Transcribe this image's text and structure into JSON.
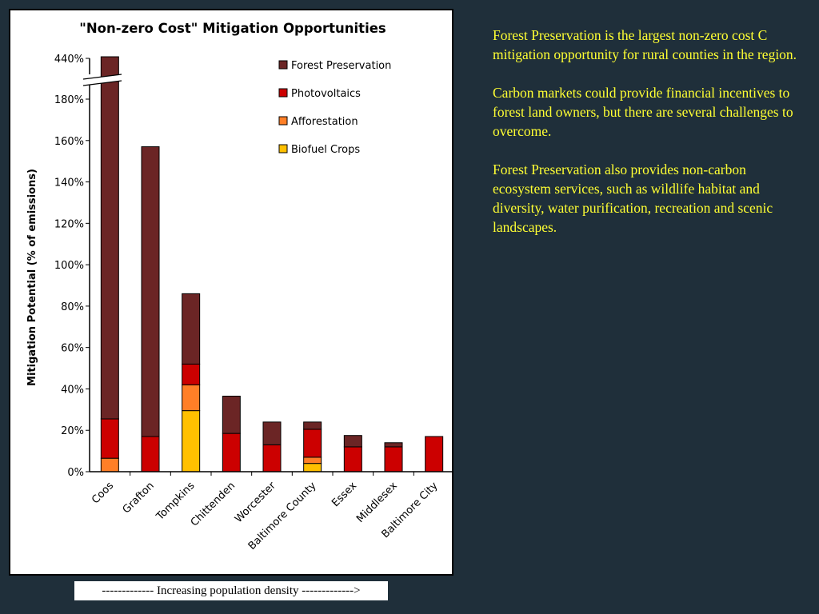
{
  "chart_data": {
    "type": "bar",
    "stacked": true,
    "title": "\"Non-zero Cost\" Mitigation Opportunities",
    "ylabel": "Mitigation Potential (% of emissions)",
    "xlabel": "",
    "ylim": [
      0,
      180
    ],
    "axis_break": {
      "from": 180,
      "to": 440,
      "top_label": "440%"
    },
    "yticks": [
      0,
      20,
      40,
      60,
      80,
      100,
      120,
      140,
      160,
      180
    ],
    "ytick_labels": [
      "0%",
      "20%",
      "40%",
      "60%",
      "80%",
      "100%",
      "120%",
      "140%",
      "160%",
      "180%"
    ],
    "legend_position": "top-right",
    "categories": [
      "Coos",
      "Grafton",
      "Tompkins",
      "Chittenden",
      "Worcester",
      "Baltimore County",
      "Essex",
      "Middlesex",
      "Baltimore City"
    ],
    "series": [
      {
        "name": "Biofuel Crops",
        "color": "#ffc000",
        "values": [
          0,
          0,
          29.5,
          0,
          0,
          4,
          0,
          0,
          0
        ]
      },
      {
        "name": "Afforestation",
        "color": "#ff7f27",
        "values": [
          6.5,
          0,
          12.5,
          0,
          0,
          3,
          0,
          0,
          0
        ]
      },
      {
        "name": "Photovoltaics",
        "color": "#cc0000",
        "values": [
          19,
          17,
          10,
          18.5,
          13,
          13.5,
          12,
          12,
          17
        ]
      },
      {
        "name": "Forest Preservation",
        "color": "#6b2525",
        "values": [
          414.5,
          140,
          34,
          18,
          11,
          3.5,
          5.5,
          2,
          0
        ]
      }
    ],
    "legend_order": [
      "Forest Preservation",
      "Photovoltaics",
      "Afforestation",
      "Biofuel Crops"
    ]
  },
  "caption": "------------- Increasing population density ------------->",
  "notes": [
    "Forest Preservation is the largest non-zero cost C mitigation opportunity for rural counties in the region.",
    "Carbon markets could provide financial incentives to forest land owners, but there are several challenges to overcome.",
    "Forest Preservation also provides non-carbon ecosystem services, such as wildlife habitat and diversity, water purification, recreation and scenic landscapes."
  ]
}
